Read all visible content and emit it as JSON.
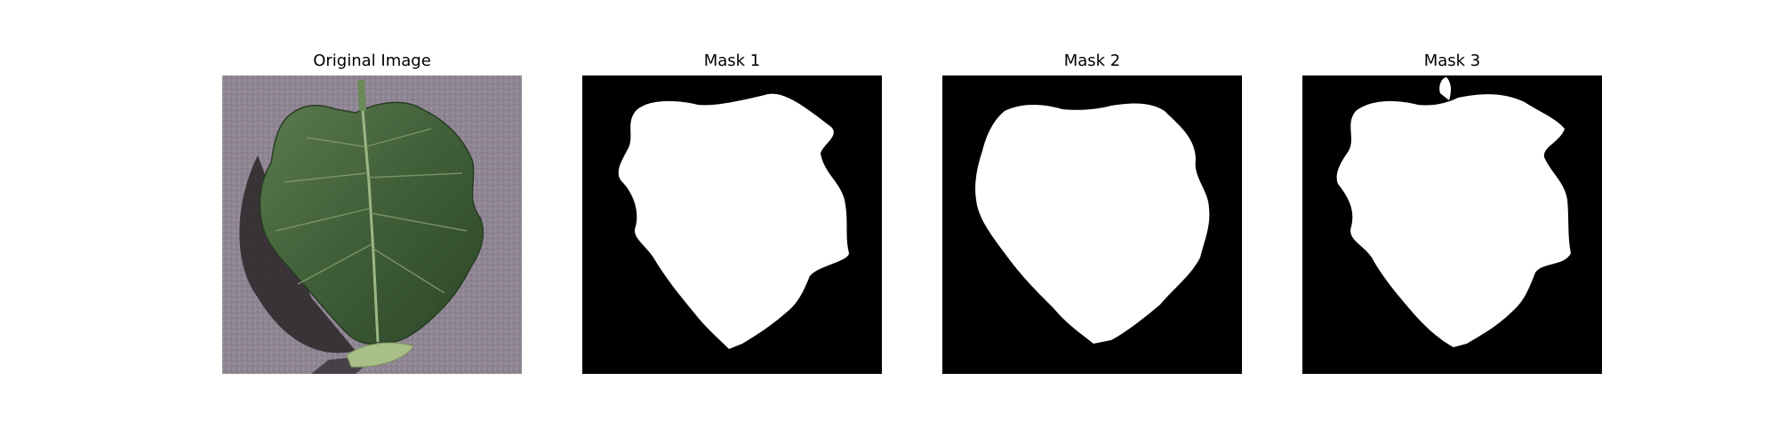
{
  "figure": {
    "panels": [
      {
        "title": "Original Image",
        "kind": "photo"
      },
      {
        "title": "Mask 1",
        "kind": "mask"
      },
      {
        "title": "Mask 2",
        "kind": "mask"
      },
      {
        "title": "Mask 3",
        "kind": "mask"
      }
    ]
  },
  "colors": {
    "background_photo": "#8e8492",
    "leaf_dark": "#2f4a2a",
    "leaf_mid": "#4f6f45",
    "leaf_light": "#8fa56f",
    "shadow": "#2a2326",
    "mask_fg": "#ffffff",
    "mask_bg": "#000000"
  }
}
